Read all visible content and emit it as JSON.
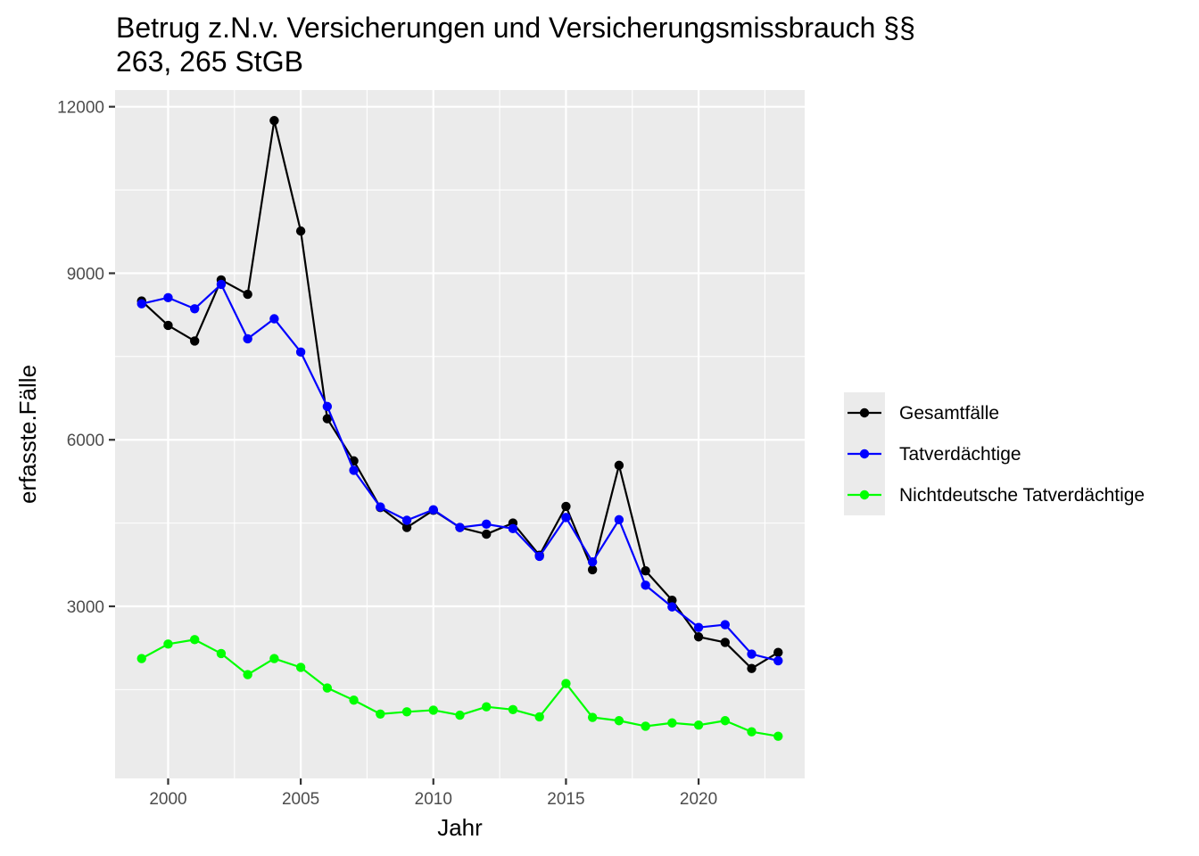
{
  "chart_data": {
    "type": "line",
    "title": "Betrug z.N.v. Versicherungen und Versicherungsmissbrauch §§ 263, 265 StGB",
    "title_lines": [
      "Betrug z.N.v. Versicherungen und Versicherungsmissbrauch §§",
      "263, 265 StGB"
    ],
    "xlabel": "Jahr",
    "ylabel": "erfasste.Fälle",
    "xlim": [
      1998,
      2024
    ],
    "ylim": [
      -100,
      12300
    ],
    "x_ticks": [
      2000,
      2005,
      2010,
      2015,
      2020
    ],
    "x_tick_labels": [
      "2000",
      "2005",
      "2010",
      "2015",
      "2020"
    ],
    "y_ticks": [
      3000,
      6000,
      9000,
      12000
    ],
    "y_tick_labels": [
      "3000",
      "6000",
      "9000",
      "12000"
    ],
    "grid": true,
    "panel_background": "#ebebeb",
    "grid_color": "#ffffff",
    "legend_position": "right",
    "x": [
      1999,
      2000,
      2001,
      2002,
      2003,
      2004,
      2005,
      2006,
      2007,
      2008,
      2009,
      2010,
      2011,
      2012,
      2013,
      2014,
      2015,
      2016,
      2017,
      2018,
      2019,
      2020,
      2021,
      2022,
      2023
    ],
    "series": [
      {
        "name": "Gesamtfälle",
        "color": "#000000",
        "values": [
          8500,
          8060,
          7780,
          8880,
          8620,
          11750,
          9760,
          6380,
          5620,
          4780,
          4420,
          4730,
          4420,
          4300,
          4500,
          3920,
          4800,
          3660,
          5540,
          3640,
          3110,
          2450,
          2350,
          1880,
          2170
        ]
      },
      {
        "name": "Tatverdächtige",
        "color": "#0000ff",
        "values": [
          8450,
          8560,
          8360,
          8800,
          7820,
          8180,
          7580,
          6600,
          5450,
          4790,
          4550,
          4740,
          4420,
          4480,
          4400,
          3900,
          4600,
          3800,
          4560,
          3380,
          2990,
          2620,
          2670,
          2140,
          2020
        ]
      },
      {
        "name": "Nichtdeutsche Tatverdächtige",
        "color": "#00ff00",
        "values": [
          2060,
          2320,
          2400,
          2150,
          1770,
          2060,
          1900,
          1530,
          1310,
          1060,
          1100,
          1130,
          1040,
          1190,
          1140,
          1010,
          1610,
          1000,
          940,
          840,
          900,
          860,
          940,
          740,
          660
        ]
      }
    ]
  }
}
